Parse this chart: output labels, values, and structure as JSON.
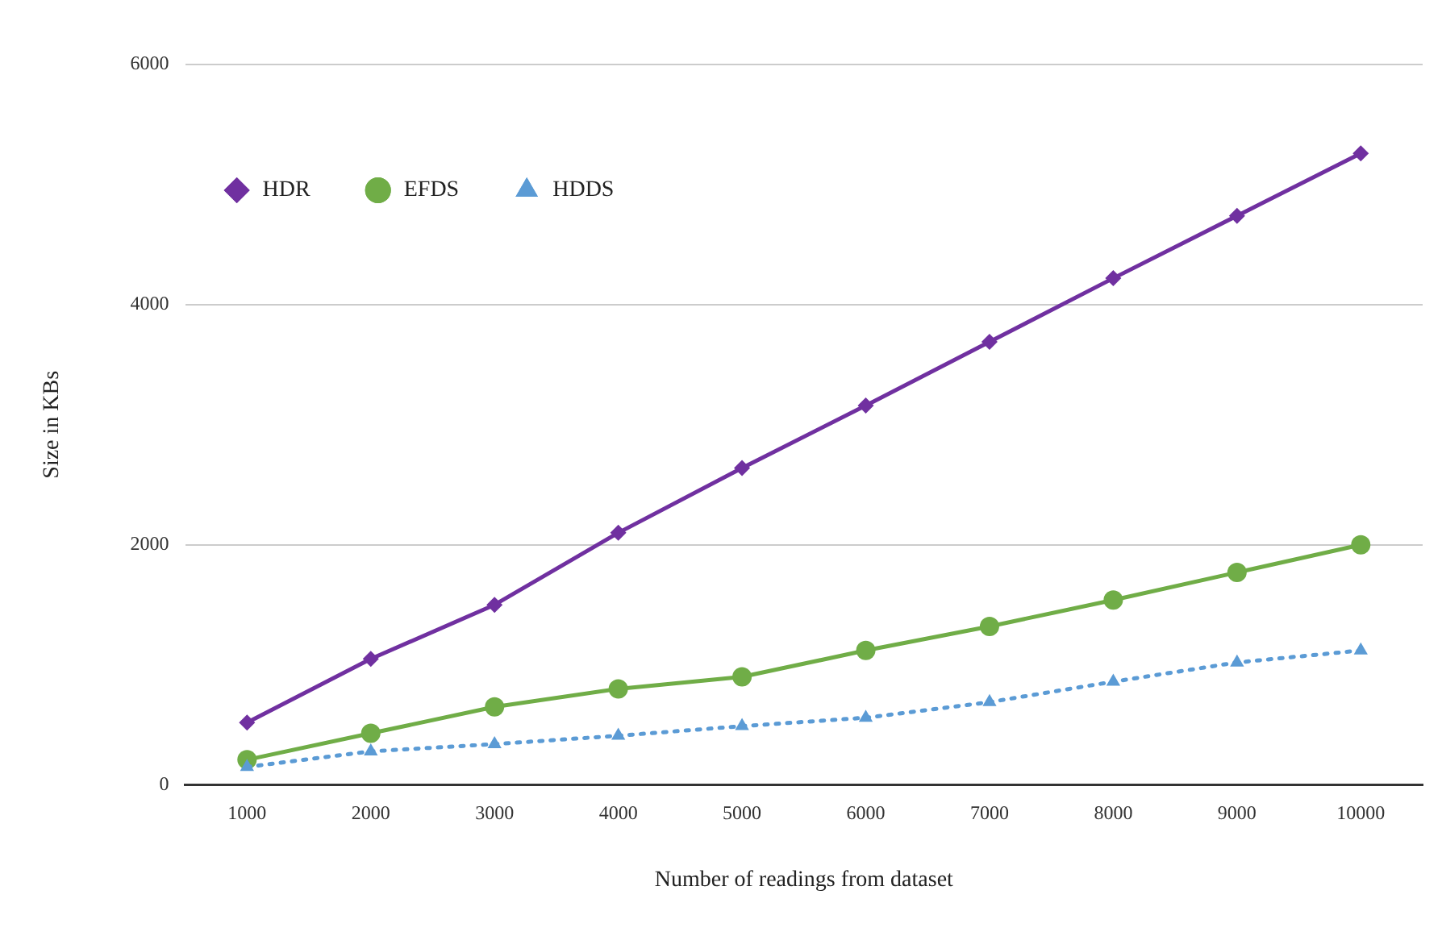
{
  "chart_data": {
    "type": "line",
    "xlabel": "Number of readings from dataset",
    "ylabel": "Size in KBs",
    "categories": [
      "1000",
      "2000",
      "3000",
      "4000",
      "5000",
      "6000",
      "7000",
      "8000",
      "9000",
      "10000"
    ],
    "series": [
      {
        "name": "HDR",
        "color": "#7030a0",
        "marker": "diamond",
        "line_style": "solid",
        "values": [
          520,
          1050,
          1500,
          2100,
          2640,
          3160,
          3690,
          4220,
          4740,
          5260
        ]
      },
      {
        "name": "EFDS",
        "color": "#70ad47",
        "marker": "circle",
        "line_style": "solid",
        "values": [
          210,
          430,
          650,
          800,
          900,
          1120,
          1320,
          1540,
          1770,
          2000
        ]
      },
      {
        "name": "HDDS",
        "color": "#5b9bd5",
        "marker": "triangle",
        "line_style": "dotted",
        "values": [
          150,
          280,
          340,
          410,
          490,
          560,
          690,
          860,
          1020,
          1120
        ]
      }
    ],
    "ylim": [
      0,
      6000
    ],
    "yticks": [
      0,
      2000,
      4000,
      6000
    ],
    "grid": "y",
    "legend": "top left"
  }
}
